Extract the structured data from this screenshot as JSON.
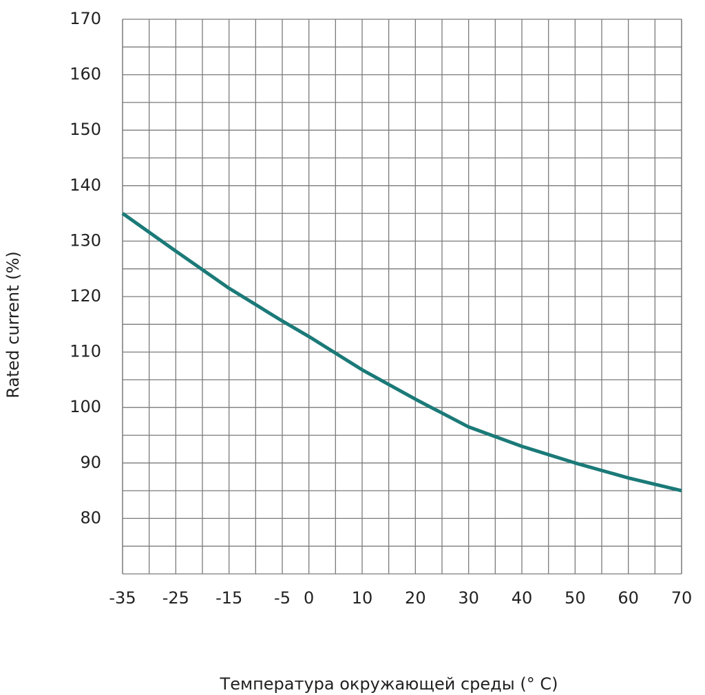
{
  "chart_data": {
    "type": "line",
    "xlabel": "Температура окружающей среды (° C)",
    "ylabel": "Rated current (%)",
    "x": [
      -35,
      -25,
      -15,
      -5,
      0,
      10,
      20,
      30,
      40,
      50,
      60,
      70
    ],
    "series": [
      {
        "color": "#1b7a78",
        "values": [
          135,
          128.2,
          121.5,
          115.6,
          112.8,
          106.8,
          101.5,
          96.5,
          93,
          90,
          87.3,
          85
        ]
      }
    ],
    "xlim": [
      -35,
      70
    ],
    "xticks": [
      -35,
      -25,
      -15,
      -5,
      0,
      10,
      20,
      30,
      40,
      50,
      60,
      70
    ],
    "xminor": [
      -30,
      -20,
      -10,
      5,
      15,
      25,
      35,
      45,
      55,
      65
    ],
    "ylim": [
      70,
      170
    ],
    "yticks": [
      80,
      90,
      100,
      110,
      120,
      130,
      140,
      150,
      160,
      170
    ],
    "yminor": [
      70,
      75,
      85,
      95,
      105,
      115,
      125,
      135,
      145,
      155,
      165
    ],
    "grid": true
  }
}
